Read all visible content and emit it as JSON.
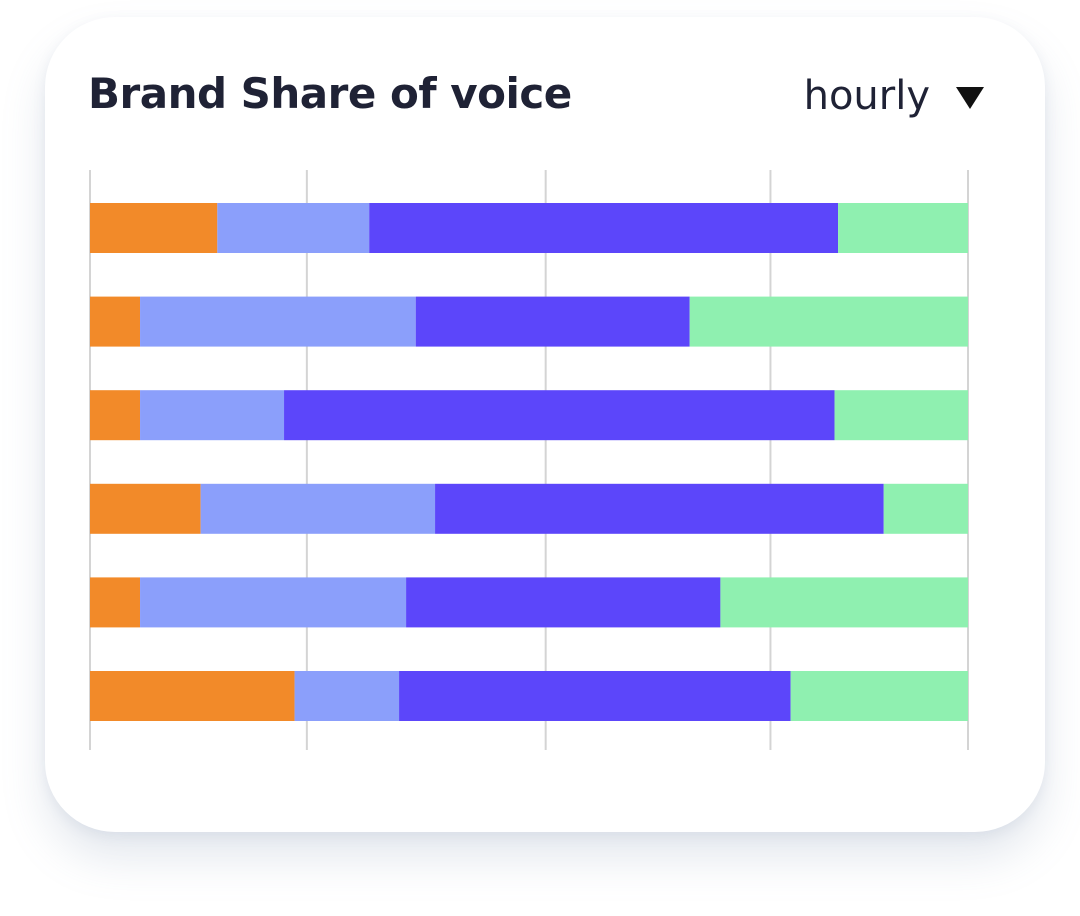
{
  "header": {
    "title": "Brand Share of voice",
    "period_selector": {
      "selected": "hourly",
      "icon": "caret-down-icon"
    }
  },
  "chart_data": {
    "type": "bar",
    "orientation": "horizontal",
    "stacked": true,
    "normalized": true,
    "xlim": [
      0,
      100
    ],
    "grid": true,
    "legend": "none",
    "categories": [
      "",
      "",
      "",
      "",
      "",
      ""
    ],
    "series": [
      {
        "color": "#f28a29",
        "values": [
          14.5,
          5.7,
          5.7,
          12.6,
          5.7,
          23.3
        ]
      },
      {
        "color": "#8b9ffb",
        "values": [
          17.3,
          31.4,
          16.4,
          26.7,
          30.3,
          11.9
        ]
      },
      {
        "color": "#5c46fa",
        "values": [
          53.4,
          31.2,
          62.7,
          51.1,
          35.8,
          44.6
        ]
      },
      {
        "color": "#8ff0b0",
        "values": [
          14.8,
          31.7,
          15.2,
          9.6,
          28.2,
          20.2
        ]
      }
    ]
  },
  "colors": {
    "title": "#1f2235",
    "gridline": "#d4d4d4",
    "card": "#ffffff"
  }
}
